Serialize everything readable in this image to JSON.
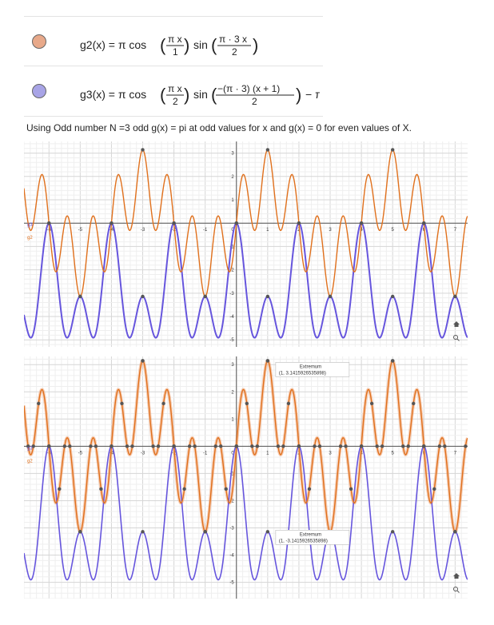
{
  "algebra": {
    "rows": [
      {
        "color": "#e8a98a",
        "expr": "g2(x) = π cos(πx/1) sin(π·3x/2)"
      },
      {
        "color": "#a8a4e6",
        "expr": "g3(x) = π cos(πx/2) sin(−(π·3)(x+1)/2) − π"
      }
    ]
  },
  "caption": "Using Odd number N =3 odd g(x) = pi at odd values for x and g(x) = 0 for even values of X.",
  "colors": {
    "g2": "#e0701c",
    "g3": "#6655dd",
    "g2_band": "#f0a070"
  },
  "labels": {
    "g3": "g3",
    "g2": "g2",
    "ext_max_title": "Extremum",
    "ext_max_value": "(1, 3.1415926535898)",
    "ext_min_title": "Extremum",
    "ext_min_value": "(1, -3.1415926535898)",
    "home_icon": "home-icon",
    "zoom_icon": "zoom-icon"
  },
  "chart_data": [
    {
      "type": "line",
      "title": "",
      "xlim": [
        -6.8,
        7.4
      ],
      "ylim": [
        -5.3,
        3.5
      ],
      "x_ticks": [
        -6,
        -5,
        -4,
        -3,
        -2,
        -1,
        0,
        1,
        2,
        3,
        4,
        5,
        6,
        7
      ],
      "y_ticks": [
        -5,
        -4,
        -3,
        -2,
        -1,
        1,
        2,
        3
      ],
      "grid": true,
      "series": [
        {
          "name": "g2",
          "formula": "pi*cos(pi*x)*sin(3*pi*x/2)"
        },
        {
          "name": "g3",
          "formula": "pi*cos(pi*x/2)*sin(-3*pi*(x+1)/2) - pi"
        }
      ]
    },
    {
      "type": "line",
      "title": "",
      "xlim": [
        -6.8,
        7.4
      ],
      "ylim": [
        -5.6,
        3.3
      ],
      "x_ticks": [
        -6,
        -5,
        -4,
        -3,
        -2,
        -1,
        0,
        1,
        2,
        3,
        4,
        5,
        6,
        7
      ],
      "y_ticks": [
        -5,
        -4,
        -3,
        -2,
        -1,
        1,
        2,
        3
      ],
      "grid": true,
      "annotations": [
        {
          "text": "Extremum",
          "point": [
            1,
            3.1415926535898
          ]
        },
        {
          "text": "Extremum",
          "point": [
            1,
            -3.1415926535898
          ]
        }
      ],
      "series": [
        {
          "name": "g2",
          "formula": "pi*cos(pi*x)*sin(3*pi*x/2)"
        },
        {
          "name": "g3",
          "formula": "pi*cos(pi*x/2)*sin(-3*pi*(x+1)/2) - pi"
        }
      ]
    }
  ]
}
